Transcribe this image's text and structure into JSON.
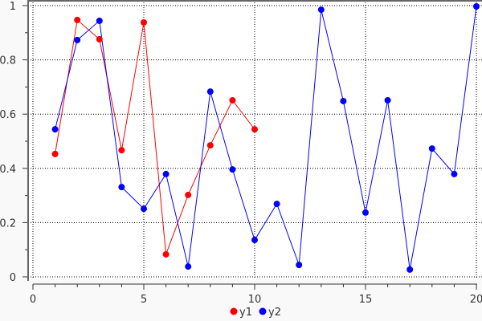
{
  "chart_data": {
    "type": "line",
    "xlim": [
      0,
      20
    ],
    "ylim": [
      0,
      1
    ],
    "x_ticks": [
      "0",
      "5",
      "10",
      "15",
      "20"
    ],
    "y_ticks": [
      "0",
      "0.2",
      "0.4",
      "0.6",
      "0.8",
      "1"
    ],
    "grid": true,
    "legend_placement": "bottom",
    "series": [
      {
        "name": "y1",
        "color": "#ff0000",
        "x": [
          1,
          2,
          3,
          4,
          5,
          6,
          7,
          8,
          9,
          10
        ],
        "y": [
          0.453,
          0.947,
          0.876,
          0.467,
          0.938,
          0.083,
          0.302,
          0.485,
          0.651,
          0.544
        ]
      },
      {
        "name": "y2",
        "color": "#0000ff",
        "x": [
          1,
          2,
          3,
          4,
          5,
          6,
          7,
          8,
          9,
          10,
          11,
          12,
          13,
          14,
          15,
          16,
          17,
          18,
          19,
          20
        ],
        "y": [
          0.544,
          0.873,
          0.944,
          0.331,
          0.251,
          0.379,
          0.038,
          0.683,
          0.396,
          0.136,
          0.269,
          0.044,
          0.985,
          0.648,
          0.237,
          0.651,
          0.027,
          0.473,
          0.379,
          0.997
        ]
      }
    ]
  }
}
